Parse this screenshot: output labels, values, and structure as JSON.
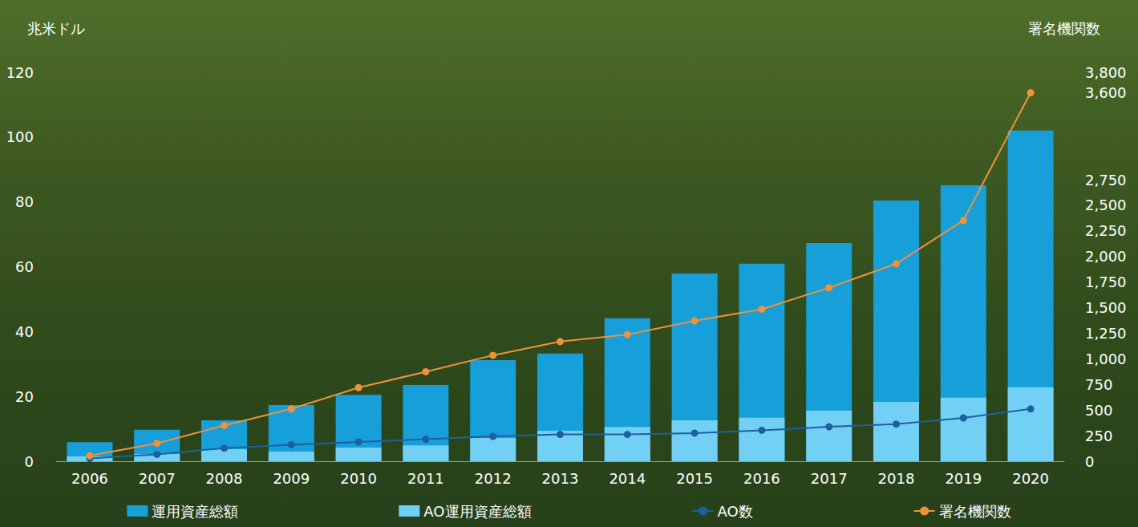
{
  "chart_data": {
    "type": "bar",
    "categories": [
      "2006",
      "2007",
      "2008",
      "2009",
      "2010",
      "2011",
      "2012",
      "2013",
      "2014",
      "2015",
      "2016",
      "2017",
      "2018",
      "2019",
      "2020"
    ],
    "series": [
      {
        "name": "運用資産総額",
        "type": "bar",
        "color": "#179fd9",
        "values": [
          5.9,
          9.7,
          12.6,
          17.3,
          20.5,
          23.5,
          31.2,
          33.2,
          44.1,
          57.9,
          60.9,
          67.3,
          80.4,
          85.1,
          102.0
        ]
      },
      {
        "name": "AO運用資産総額",
        "type": "bar",
        "color": "#72d0f5",
        "values": [
          1.5,
          2.2,
          3.7,
          3.0,
          4.2,
          4.9,
          7.2,
          9.4,
          10.6,
          12.6,
          13.4,
          15.6,
          18.3,
          19.6,
          22.8
        ]
      },
      {
        "name": "AO数",
        "type": "line",
        "axis": "y2",
        "color": "#1f5fa0",
        "marker": "circle",
        "values": [
          27,
          67,
          128,
          161,
          188,
          215,
          242,
          262,
          262,
          275,
          302,
          336,
          363,
          423,
          511
        ]
      },
      {
        "name": "署名機関数",
        "type": "line",
        "axis": "y2",
        "color": "#f0923a",
        "marker": "circle",
        "values": [
          54,
          175,
          349,
          511,
          719,
          874,
          1035,
          1169,
          1237,
          1371,
          1485,
          1694,
          1929,
          2352,
          3600
        ]
      }
    ],
    "ylabel": "兆米ドル",
    "y2label": "署名機関数",
    "ylim": [
      0,
      120
    ],
    "yticks": [
      0,
      20,
      40,
      60,
      80,
      100,
      120
    ],
    "y2lim": [
      0,
      3800
    ],
    "y2ticks": [
      0,
      250,
      500,
      750,
      1000,
      1250,
      1500,
      1750,
      2000,
      2250,
      2500,
      2750,
      3600,
      3800
    ],
    "stacked": false,
    "grid": false,
    "legend": "bottom"
  }
}
